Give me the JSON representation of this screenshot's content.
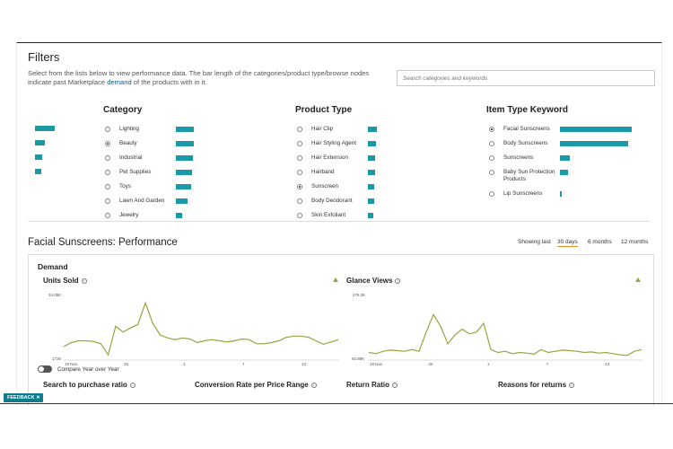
{
  "filters": {
    "title": "Filters",
    "description_pre": "Select from the lists below to view performance data. The bar length of the categories/product type/browse nodes indicate past Marketplace ",
    "description_link": "demand",
    "description_post": " of the products with in it.",
    "search_placeholder": "Search categories and keywords",
    "left_bars": [
      0.9,
      0.45,
      0.35,
      0.3
    ],
    "category": {
      "title": "Category",
      "items": [
        {
          "label": "Lighting",
          "selected": false,
          "bar": 0.85
        },
        {
          "label": "Beauty",
          "selected": true,
          "bar": 0.85
        },
        {
          "label": "Industrial",
          "selected": false,
          "bar": 0.8
        },
        {
          "label": "Pet Supplies",
          "selected": false,
          "bar": 0.75
        },
        {
          "label": "Toys",
          "selected": false,
          "bar": 0.7
        },
        {
          "label": "Lawn And Garden",
          "selected": false,
          "bar": 0.55
        },
        {
          "label": "Jewelry",
          "selected": false,
          "bar": 0.3
        }
      ]
    },
    "product_type": {
      "title": "Product Type",
      "items": [
        {
          "label": "Hair Clip",
          "selected": false,
          "bar": 1.0
        },
        {
          "label": "Hair Styling Agent",
          "selected": false,
          "bar": 0.9
        },
        {
          "label": "Hair Extension",
          "selected": false,
          "bar": 0.8
        },
        {
          "label": "Hairband",
          "selected": false,
          "bar": 0.75
        },
        {
          "label": "Sunscreen",
          "selected": true,
          "bar": 0.7
        },
        {
          "label": "Body Deodorant",
          "selected": false,
          "bar": 0.65
        },
        {
          "label": "Skin Exfoliant",
          "selected": false,
          "bar": 0.6
        }
      ]
    },
    "item_type": {
      "title": "Item Type Keyword",
      "items": [
        {
          "label": "Facial Sunscreens",
          "selected": true,
          "bar": 1.0
        },
        {
          "label": "Body Sunscreens",
          "selected": false,
          "bar": 0.95
        },
        {
          "label": "Sunscreens",
          "selected": false,
          "bar": 0.14
        },
        {
          "label": "Baby Sun Protection Products",
          "selected": false,
          "bar": 0.11
        },
        {
          "label": "Lip Sunscreens",
          "selected": false,
          "bar": 0.03
        }
      ]
    }
  },
  "performance": {
    "title": "Facial Sunscreens: Performance",
    "showing_label": "Showing last",
    "periods": [
      "30 days",
      "6 months",
      "12 months"
    ],
    "selected_period": "30 days",
    "demand_label": "Demand",
    "compare_label": "Compare Year over Year",
    "feedback_label": "FEEDBACK ✕",
    "units_sold": {
      "title": "Units Sold",
      "ymax_label": "34.05K",
      "ymin_label": "1726",
      "x_ticks": [
        "19 Nov",
        "25",
        "1",
        "7",
        "13"
      ],
      "values": [
        0.2,
        0.27,
        0.3,
        0.3,
        0.29,
        0.25,
        0.06,
        0.55,
        0.45,
        0.52,
        0.58,
        0.95,
        0.6,
        0.4,
        0.35,
        0.32,
        0.35,
        0.33,
        0.27,
        0.3,
        0.32,
        0.3,
        0.28,
        0.3,
        0.33,
        0.32,
        0.25,
        0.25,
        0.27,
        0.3,
        0.36,
        0.38,
        0.38,
        0.36,
        0.3,
        0.24,
        0.28,
        0.32
      ]
    },
    "glance_views": {
      "title": "Glance Views",
      "ymax_label": "278.3K",
      "ymin_label": "92.88K",
      "x_ticks": [
        "19 Nov",
        "25",
        "1",
        "7",
        "13"
      ],
      "values": [
        0.1,
        0.08,
        0.12,
        0.14,
        0.13,
        0.12,
        0.15,
        0.12,
        0.45,
        0.75,
        0.55,
        0.25,
        0.4,
        0.5,
        0.42,
        0.45,
        0.6,
        0.15,
        0.1,
        0.12,
        0.08,
        0.1,
        0.09,
        0.07,
        0.15,
        0.1,
        0.12,
        0.14,
        0.13,
        0.12,
        0.1,
        0.11,
        0.09,
        0.1,
        0.08,
        0.06,
        0.05,
        0.12,
        0.15
      ]
    },
    "metrics": [
      "Search to purchase ratio",
      "Conversion Rate per Price Range",
      "Return Ratio",
      "Reasons for returns"
    ],
    "colors": {
      "bar": "#1b9aa6",
      "line": "#9ba23f",
      "accent": "#e48b1b"
    }
  }
}
